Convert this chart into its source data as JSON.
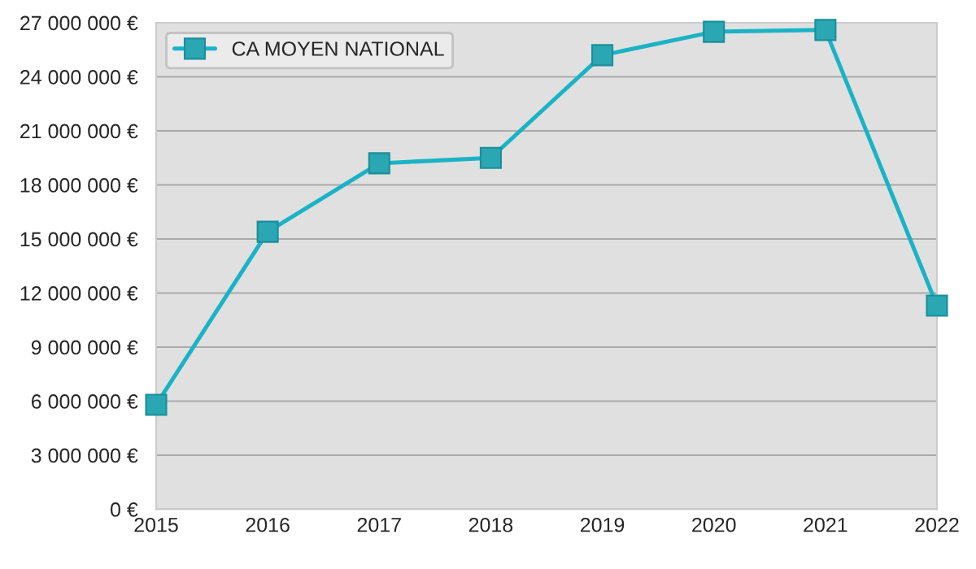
{
  "chart_data": {
    "type": "line",
    "x": [
      2015,
      2016,
      2017,
      2018,
      2019,
      2020,
      2021,
      2022
    ],
    "series": [
      {
        "name": "CA MOYEN NATIONAL",
        "color": "#1ab3c6",
        "values": [
          5800000,
          15400000,
          19200000,
          19500000,
          25200000,
          26500000,
          26600000,
          11300000
        ]
      }
    ],
    "xlim": [
      2015,
      2022
    ],
    "xticks": [
      2015,
      2016,
      2017,
      2018,
      2019,
      2020,
      2021,
      2022
    ],
    "ylim": [
      0,
      27000000
    ],
    "yticks": [
      {
        "value": 0,
        "label": "0 €"
      },
      {
        "value": 3000000,
        "label": "3 000 000 €"
      },
      {
        "value": 6000000,
        "label": "6 000 000 €"
      },
      {
        "value": 9000000,
        "label": "9 000 000 €"
      },
      {
        "value": 12000000,
        "label": "12 000 000 €"
      },
      {
        "value": 15000000,
        "label": "15 000 000 €"
      },
      {
        "value": 18000000,
        "label": "18 000 000 €"
      },
      {
        "value": 21000000,
        "label": "21 000 000 €"
      },
      {
        "value": 24000000,
        "label": "24 000 000 €"
      },
      {
        "value": 27000000,
        "label": "27 000 000 €"
      }
    ],
    "grid": "y",
    "legend": "top left",
    "marker": "square",
    "line_style": "solid"
  }
}
